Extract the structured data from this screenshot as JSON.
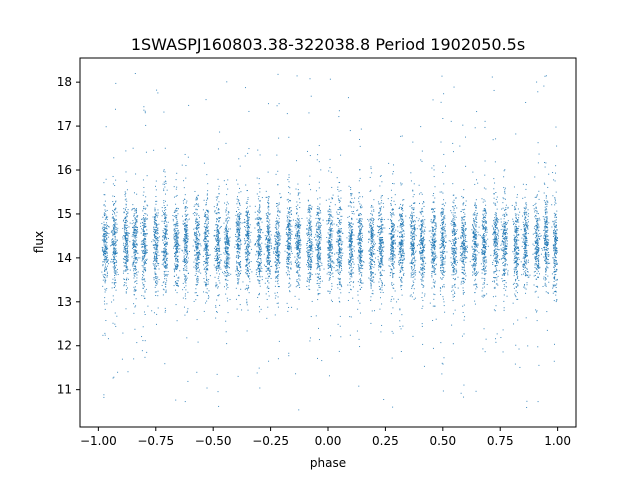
{
  "chart_data": {
    "type": "scatter",
    "title": "1SWASPJ160803.38-322038.8 Period 1902050.5s",
    "xlabel": "phase",
    "ylabel": "flux",
    "xlim": [
      -1.08,
      1.08
    ],
    "ylim": [
      10.15,
      18.55
    ],
    "xticks": [
      -1.0,
      -0.75,
      -0.5,
      -0.25,
      0.0,
      0.25,
      0.5,
      0.75,
      1.0
    ],
    "xtick_labels": [
      "−1.00",
      "−0.75",
      "−0.50",
      "−0.25",
      "0.00",
      "0.25",
      "0.50",
      "0.75",
      "1.00"
    ],
    "yticks": [
      11,
      12,
      13,
      14,
      15,
      16,
      17,
      18
    ],
    "ytick_labels": [
      "11",
      "12",
      "13",
      "14",
      "15",
      "16",
      "17",
      "18"
    ],
    "grid": false,
    "legend": "none",
    "point_color": "#1f77b4",
    "series": [
      {
        "x_range": [
          -1.0,
          1.0
        ],
        "typical_flux": 14.3,
        "typical_spread": [
          13.0,
          15.5
        ],
        "outlier_range": [
          10.5,
          18.2
        ],
        "clusters": [
          -0.97,
          -0.93,
          -0.88,
          -0.84,
          -0.8,
          -0.75,
          -0.71,
          -0.66,
          -0.62,
          -0.57,
          -0.53,
          -0.48,
          -0.44,
          -0.39,
          -0.35,
          -0.3,
          -0.26,
          -0.22,
          -0.17,
          -0.13,
          -0.08,
          -0.04,
          0.01,
          0.05,
          0.1,
          0.14,
          0.19,
          0.23,
          0.28,
          0.32,
          0.37,
          0.41,
          0.46,
          0.5,
          0.55,
          0.59,
          0.64,
          0.68,
          0.73,
          0.77,
          0.82,
          0.86,
          0.91,
          0.95,
          0.99
        ]
      }
    ]
  }
}
